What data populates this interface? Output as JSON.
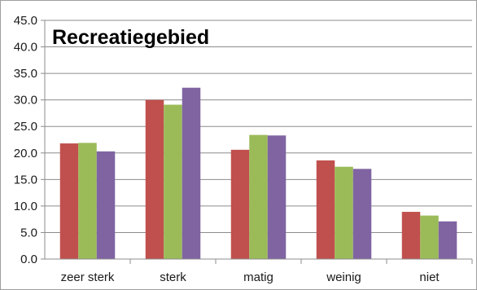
{
  "chart_data": {
    "type": "bar",
    "title": "Recreatiegebied",
    "xlabel": "",
    "ylabel": "",
    "categories": [
      "zeer sterk",
      "sterk",
      "matig",
      "weinig",
      "niet"
    ],
    "series": [
      {
        "values": [
          21.8,
          30.0,
          20.6,
          18.6,
          8.9
        ],
        "color": "#c0504d"
      },
      {
        "values": [
          21.9,
          29.1,
          23.4,
          17.4,
          8.2
        ],
        "color": "#9bbb59"
      },
      {
        "values": [
          20.3,
          32.3,
          23.3,
          17.0,
          7.1
        ],
        "color": "#8064a2"
      }
    ],
    "ylim": [
      0,
      45
    ],
    "yticks": [
      "0.0",
      "5.0",
      "10.0",
      "15.0",
      "20.0",
      "25.0",
      "30.0",
      "35.0",
      "40.0",
      "45.0"
    ],
    "ytick_values": [
      0,
      5,
      10,
      15,
      20,
      25,
      30,
      35,
      40,
      45
    ],
    "grid": true,
    "legend": "none"
  }
}
